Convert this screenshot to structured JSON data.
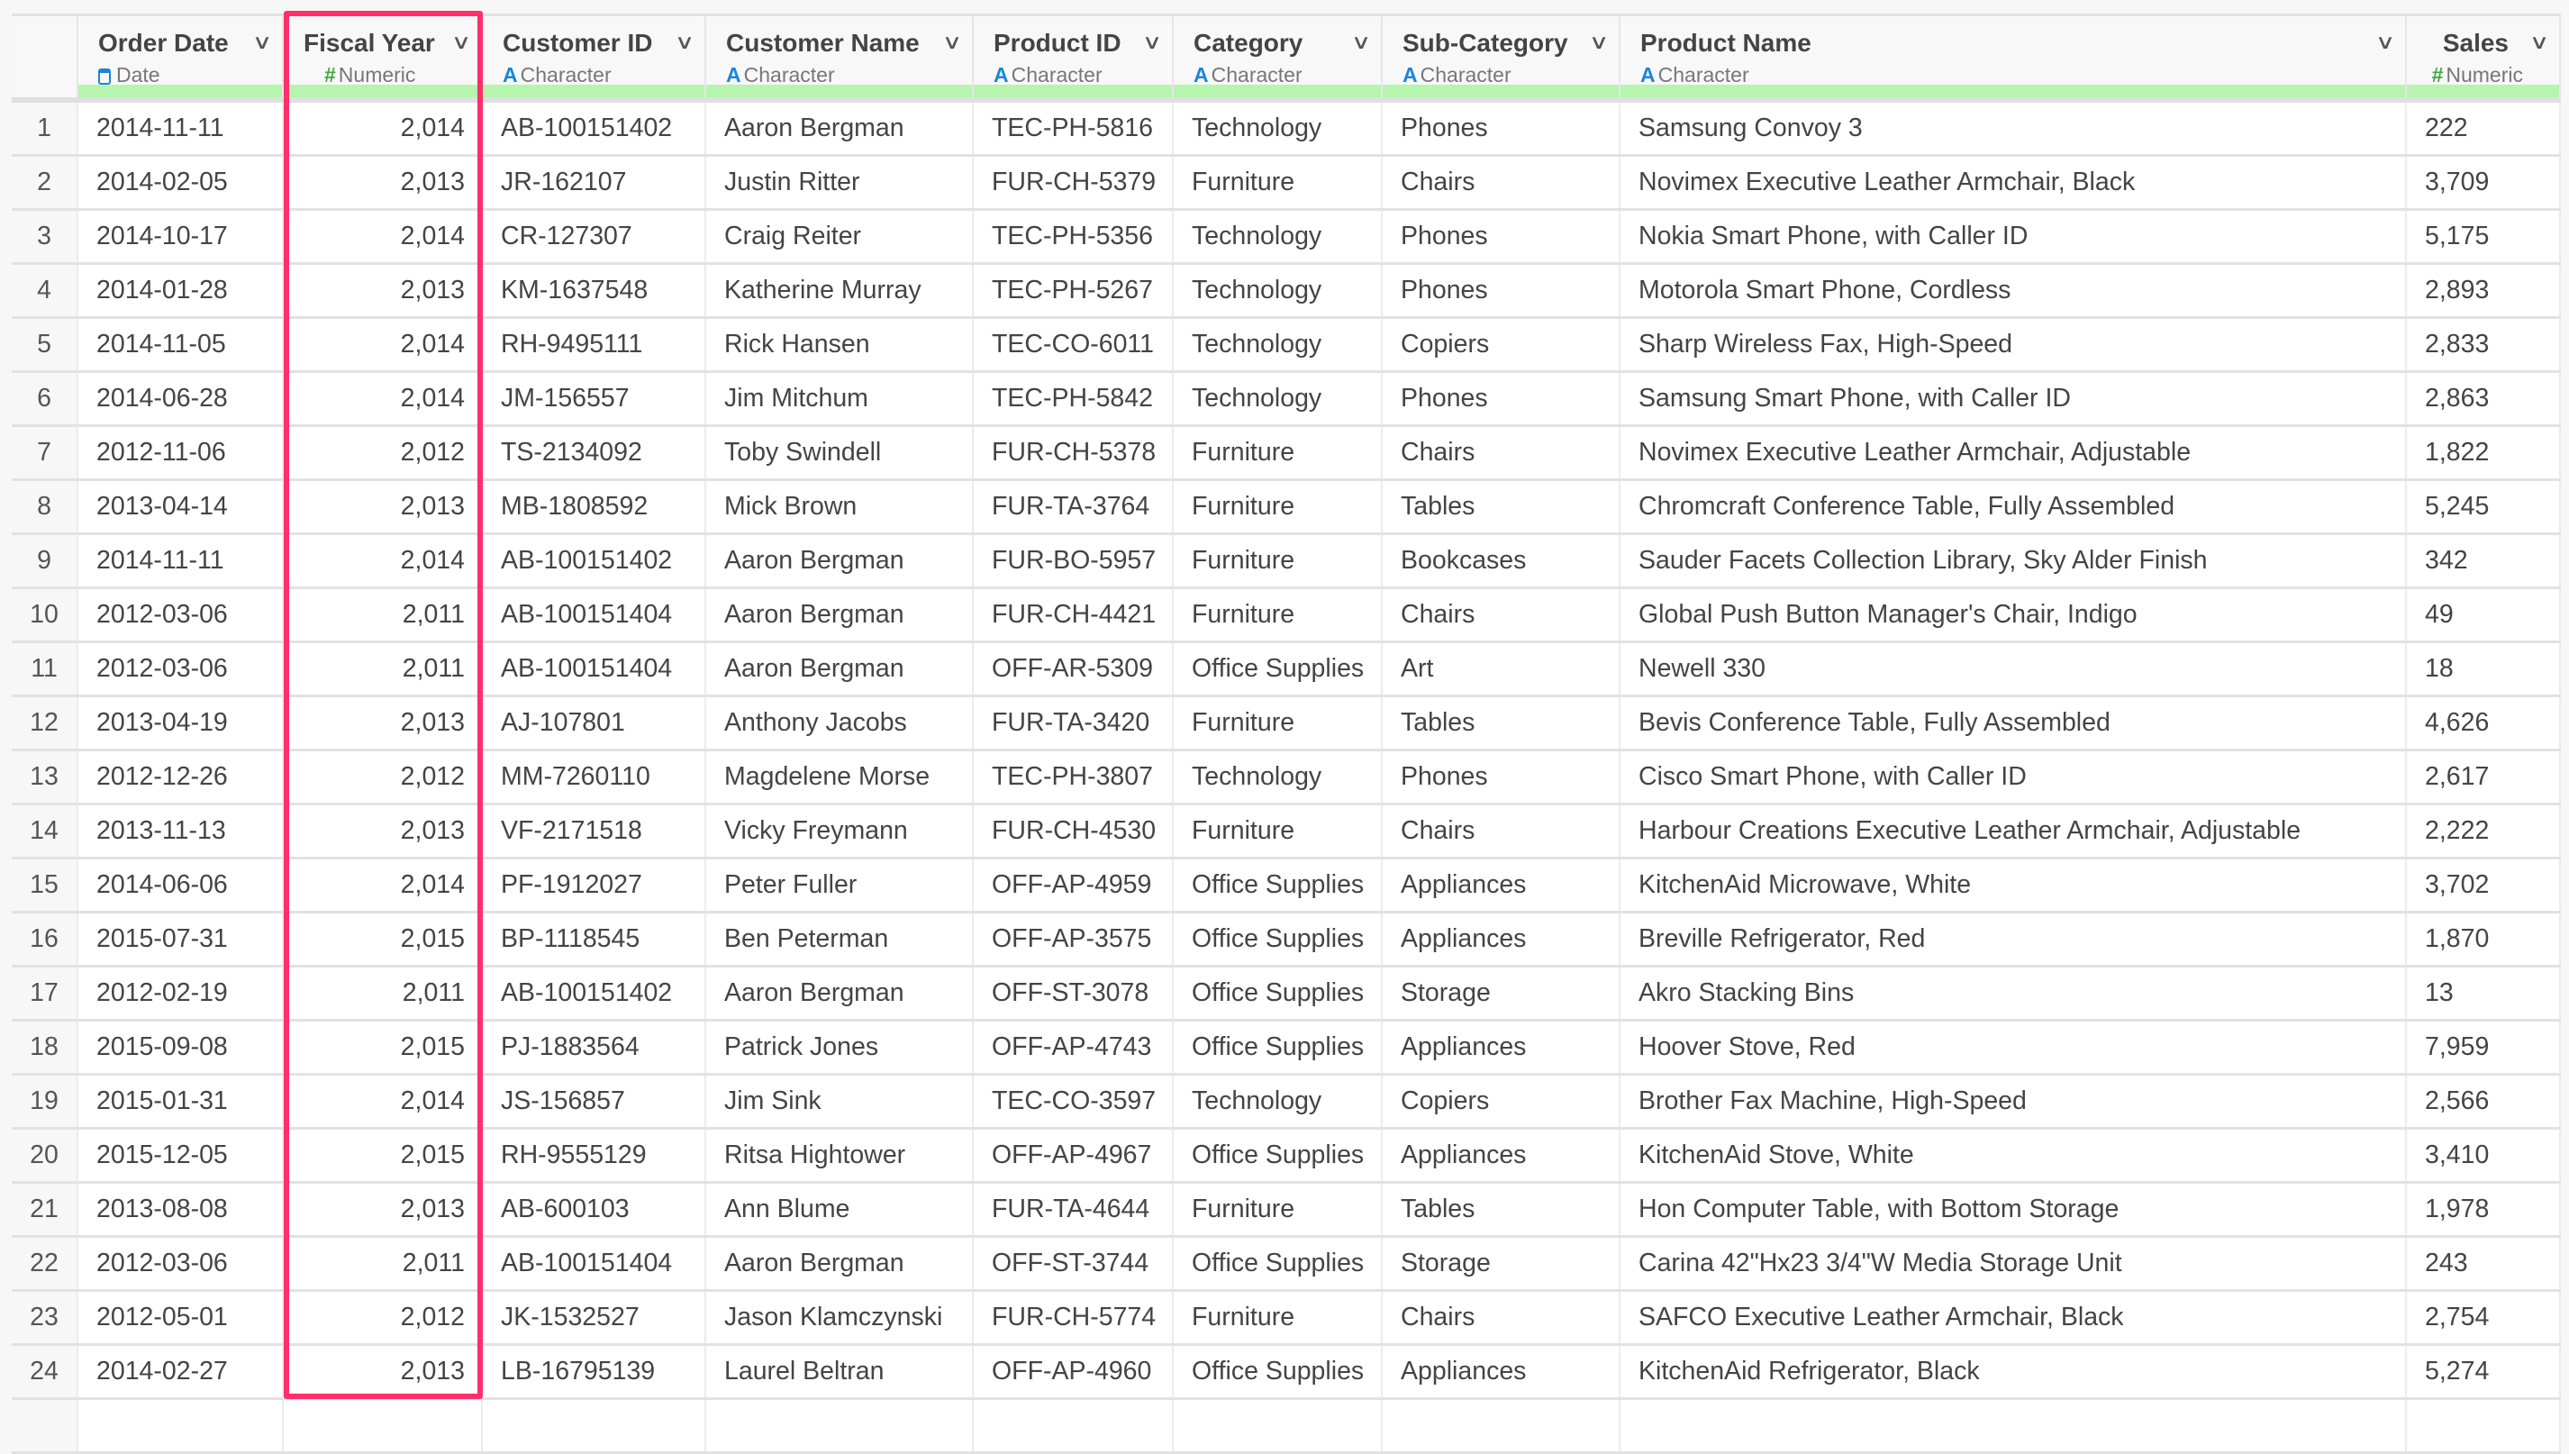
{
  "columns": [
    {
      "name": "Order Date",
      "type": "Date",
      "type_icon": "calendar-icon"
    },
    {
      "name": "Fiscal Year",
      "type": "Numeric",
      "type_icon": "hash-icon"
    },
    {
      "name": "Customer ID",
      "type": "Character",
      "type_icon": "character-icon"
    },
    {
      "name": "Customer Name",
      "type": "Character",
      "type_icon": "character-icon"
    },
    {
      "name": "Product ID",
      "type": "Character",
      "type_icon": "character-icon"
    },
    {
      "name": "Category",
      "type": "Character",
      "type_icon": "character-icon"
    },
    {
      "name": "Sub-Category",
      "type": "Character",
      "type_icon": "character-icon"
    },
    {
      "name": "Product Name",
      "type": "Character",
      "type_icon": "character-icon"
    },
    {
      "name": "Sales",
      "type": "Numeric",
      "type_icon": "hash-icon"
    }
  ],
  "icons": {
    "hash": "#",
    "character": "A",
    "chevron": "∨"
  },
  "highlight_color": "#ff2e6c",
  "rows": [
    [
      "1",
      "2014-11-11",
      "2,014",
      "AB-100151402",
      "Aaron Bergman",
      "TEC-PH-5816",
      "Technology",
      "Phones",
      "Samsung Convoy 3",
      "222"
    ],
    [
      "2",
      "2014-02-05",
      "2,013",
      "JR-162107",
      "Justin Ritter",
      "FUR-CH-5379",
      "Furniture",
      "Chairs",
      "Novimex Executive Leather Armchair, Black",
      "3,709"
    ],
    [
      "3",
      "2014-10-17",
      "2,014",
      "CR-127307",
      "Craig Reiter",
      "TEC-PH-5356",
      "Technology",
      "Phones",
      "Nokia Smart Phone, with Caller ID",
      "5,175"
    ],
    [
      "4",
      "2014-01-28",
      "2,013",
      "KM-1637548",
      "Katherine Murray",
      "TEC-PH-5267",
      "Technology",
      "Phones",
      "Motorola Smart Phone, Cordless",
      "2,893"
    ],
    [
      "5",
      "2014-11-05",
      "2,014",
      "RH-9495111",
      "Rick Hansen",
      "TEC-CO-6011",
      "Technology",
      "Copiers",
      "Sharp Wireless Fax, High-Speed",
      "2,833"
    ],
    [
      "6",
      "2014-06-28",
      "2,014",
      "JM-156557",
      "Jim Mitchum",
      "TEC-PH-5842",
      "Technology",
      "Phones",
      "Samsung Smart Phone, with Caller ID",
      "2,863"
    ],
    [
      "7",
      "2012-11-06",
      "2,012",
      "TS-2134092",
      "Toby Swindell",
      "FUR-CH-5378",
      "Furniture",
      "Chairs",
      "Novimex Executive Leather Armchair, Adjustable",
      "1,822"
    ],
    [
      "8",
      "2013-04-14",
      "2,013",
      "MB-1808592",
      "Mick Brown",
      "FUR-TA-3764",
      "Furniture",
      "Tables",
      "Chromcraft Conference Table, Fully Assembled",
      "5,245"
    ],
    [
      "9",
      "2014-11-11",
      "2,014",
      "AB-100151402",
      "Aaron Bergman",
      "FUR-BO-5957",
      "Furniture",
      "Bookcases",
      "Sauder Facets Collection Library, Sky Alder Finish",
      "342"
    ],
    [
      "10",
      "2012-03-06",
      "2,011",
      "AB-100151404",
      "Aaron Bergman",
      "FUR-CH-4421",
      "Furniture",
      "Chairs",
      "Global Push Button Manager's Chair, Indigo",
      "49"
    ],
    [
      "11",
      "2012-03-06",
      "2,011",
      "AB-100151404",
      "Aaron Bergman",
      "OFF-AR-5309",
      "Office Supplies",
      "Art",
      "Newell 330",
      "18"
    ],
    [
      "12",
      "2013-04-19",
      "2,013",
      "AJ-107801",
      "Anthony Jacobs",
      "FUR-TA-3420",
      "Furniture",
      "Tables",
      "Bevis Conference Table, Fully Assembled",
      "4,626"
    ],
    [
      "13",
      "2012-12-26",
      "2,012",
      "MM-7260110",
      "Magdelene Morse",
      "TEC-PH-3807",
      "Technology",
      "Phones",
      "Cisco Smart Phone, with Caller ID",
      "2,617"
    ],
    [
      "14",
      "2013-11-13",
      "2,013",
      "VF-2171518",
      "Vicky Freymann",
      "FUR-CH-4530",
      "Furniture",
      "Chairs",
      "Harbour Creations Executive Leather Armchair, Adjustable",
      "2,222"
    ],
    [
      "15",
      "2014-06-06",
      "2,014",
      "PF-1912027",
      "Peter Fuller",
      "OFF-AP-4959",
      "Office Supplies",
      "Appliances",
      "KitchenAid Microwave, White",
      "3,702"
    ],
    [
      "16",
      "2015-07-31",
      "2,015",
      "BP-1118545",
      "Ben Peterman",
      "OFF-AP-3575",
      "Office Supplies",
      "Appliances",
      "Breville Refrigerator, Red",
      "1,870"
    ],
    [
      "17",
      "2012-02-19",
      "2,011",
      "AB-100151402",
      "Aaron Bergman",
      "OFF-ST-3078",
      "Office Supplies",
      "Storage",
      "Akro Stacking Bins",
      "13"
    ],
    [
      "18",
      "2015-09-08",
      "2,015",
      "PJ-1883564",
      "Patrick Jones",
      "OFF-AP-4743",
      "Office Supplies",
      "Appliances",
      "Hoover Stove, Red",
      "7,959"
    ],
    [
      "19",
      "2015-01-31",
      "2,014",
      "JS-156857",
      "Jim Sink",
      "TEC-CO-3597",
      "Technology",
      "Copiers",
      "Brother Fax Machine, High-Speed",
      "2,566"
    ],
    [
      "20",
      "2015-12-05",
      "2,015",
      "RH-9555129",
      "Ritsa Hightower",
      "OFF-AP-4967",
      "Office Supplies",
      "Appliances",
      "KitchenAid Stove, White",
      "3,410"
    ],
    [
      "21",
      "2013-08-08",
      "2,013",
      "AB-600103",
      "Ann Blume",
      "FUR-TA-4644",
      "Furniture",
      "Tables",
      "Hon Computer Table, with Bottom Storage",
      "1,978"
    ],
    [
      "22",
      "2012-03-06",
      "2,011",
      "AB-100151404",
      "Aaron Bergman",
      "OFF-ST-3744",
      "Office Supplies",
      "Storage",
      "Carina 42\"Hx23 3/4\"W Media Storage Unit",
      "243"
    ],
    [
      "23",
      "2012-05-01",
      "2,012",
      "JK-1532527",
      "Jason Klamczynski",
      "FUR-CH-5774",
      "Furniture",
      "Chairs",
      "SAFCO Executive Leather Armchair, Black",
      "2,754"
    ],
    [
      "24",
      "2014-02-27",
      "2,013",
      "LB-16795139",
      "Laurel Beltran",
      "OFF-AP-4960",
      "Office Supplies",
      "Appliances",
      "KitchenAid Refrigerator, Black",
      "5,274"
    ]
  ]
}
